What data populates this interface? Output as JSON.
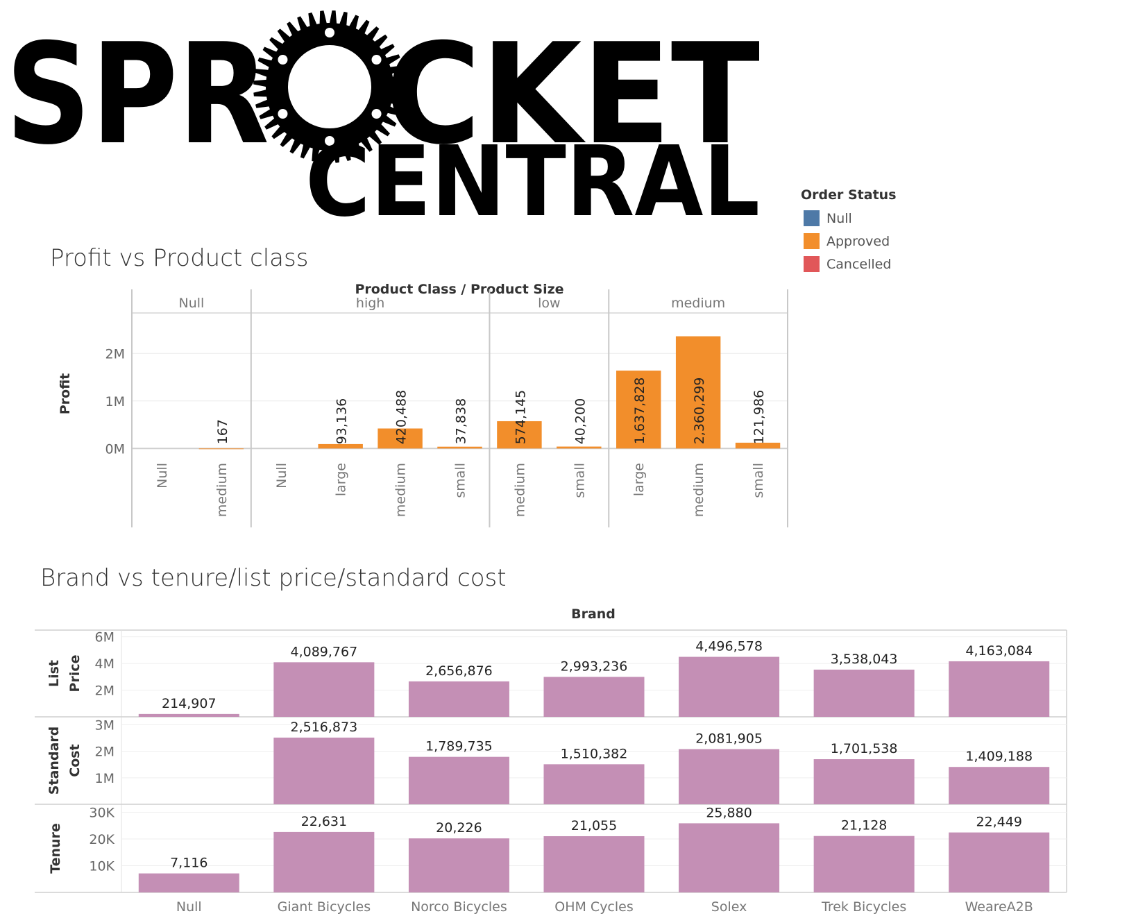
{
  "logo": {
    "line1_left": "SPR",
    "line1_right": "CKET",
    "line2": "CENTRAL",
    "gear_icon": "sprocket-icon"
  },
  "legend": {
    "title": "Order Status",
    "items": [
      {
        "label": "Null",
        "color": "#4e79a7"
      },
      {
        "label": "Approved",
        "color": "#f28e2b"
      },
      {
        "label": "Cancelled",
        "color": "#e15759"
      }
    ]
  },
  "chart_data": [
    {
      "type": "bar",
      "title": "Profit vs Product class",
      "header": "Product Class  /  Product Size",
      "ylabel": "Profit",
      "ylim": [
        -200000,
        2500000
      ],
      "yticks": [
        {
          "value": 0,
          "label": "0M"
        },
        {
          "value": 1000000,
          "label": "1M"
        },
        {
          "value": 2000000,
          "label": "2M"
        }
      ],
      "bar_color": "#f28e2b",
      "groups": [
        {
          "name": "Null",
          "categories": [
            {
              "size": "Null",
              "value": null,
              "label": ""
            },
            {
              "size": "medium",
              "value": 167,
              "label": "167"
            }
          ]
        },
        {
          "name": "high",
          "categories": [
            {
              "size": "Null",
              "value": null,
              "label": ""
            },
            {
              "size": "large",
              "value": 93136,
              "label": "93,136"
            },
            {
              "size": "medium",
              "value": 420488,
              "label": "420,488"
            },
            {
              "size": "small",
              "value": 37838,
              "label": "37,838"
            }
          ]
        },
        {
          "name": "low",
          "categories": [
            {
              "size": "medium",
              "value": 574145,
              "label": "574,145"
            },
            {
              "size": "small",
              "value": 40200,
              "label": "40,200"
            }
          ]
        },
        {
          "name": "medium",
          "categories": [
            {
              "size": "large",
              "value": 1637828,
              "label": "1,637,828"
            },
            {
              "size": "medium",
              "value": 2360299,
              "label": "2,360,299"
            },
            {
              "size": "small",
              "value": 121986,
              "label": "121,986"
            }
          ]
        }
      ]
    },
    {
      "type": "bar",
      "title": "Brand vs tenure/list price/standard cost",
      "xlabel": "Brand",
      "bar_color": "#c48fb5",
      "categories": [
        "Null",
        "Giant Bicycles",
        "Norco Bicycles",
        "OHM Cycles",
        "Solex",
        "Trek Bicycles",
        "WeareA2B"
      ],
      "series": [
        {
          "name": "List Price",
          "ylim": [
            0,
            6500000
          ],
          "yticks": [
            {
              "value": 2000000,
              "label": "2M"
            },
            {
              "value": 4000000,
              "label": "4M"
            },
            {
              "value": 6000000,
              "label": "6M"
            }
          ],
          "values": [
            214907,
            4089767,
            2656876,
            2993236,
            4496578,
            3538043,
            4163084
          ],
          "labels": [
            "214,907",
            "4,089,767",
            "2,656,876",
            "2,993,236",
            "4,496,578",
            "3,538,043",
            "4,163,084"
          ]
        },
        {
          "name": "Standard Cost",
          "ylim": [
            0,
            3300000
          ],
          "yticks": [
            {
              "value": 1000000,
              "label": "1M"
            },
            {
              "value": 2000000,
              "label": "2M"
            },
            {
              "value": 3000000,
              "label": "3M"
            }
          ],
          "values": [
            null,
            2516873,
            1789735,
            1510382,
            2081905,
            1701538,
            1409188
          ],
          "labels": [
            "",
            "2,516,873",
            "1,789,735",
            "1,510,382",
            "2,081,905",
            "1,701,538",
            "1,409,188"
          ]
        },
        {
          "name": "Tenure",
          "ylim": [
            0,
            33000
          ],
          "yticks": [
            {
              "value": 10000,
              "label": "10K"
            },
            {
              "value": 20000,
              "label": "20K"
            },
            {
              "value": 30000,
              "label": "30K"
            }
          ],
          "values": [
            7116,
            22631,
            20226,
            21055,
            25880,
            21128,
            22449
          ],
          "labels": [
            "7,116",
            "22,631",
            "20,226",
            "21,055",
            "25,880",
            "21,128",
            "22,449"
          ]
        }
      ]
    }
  ]
}
